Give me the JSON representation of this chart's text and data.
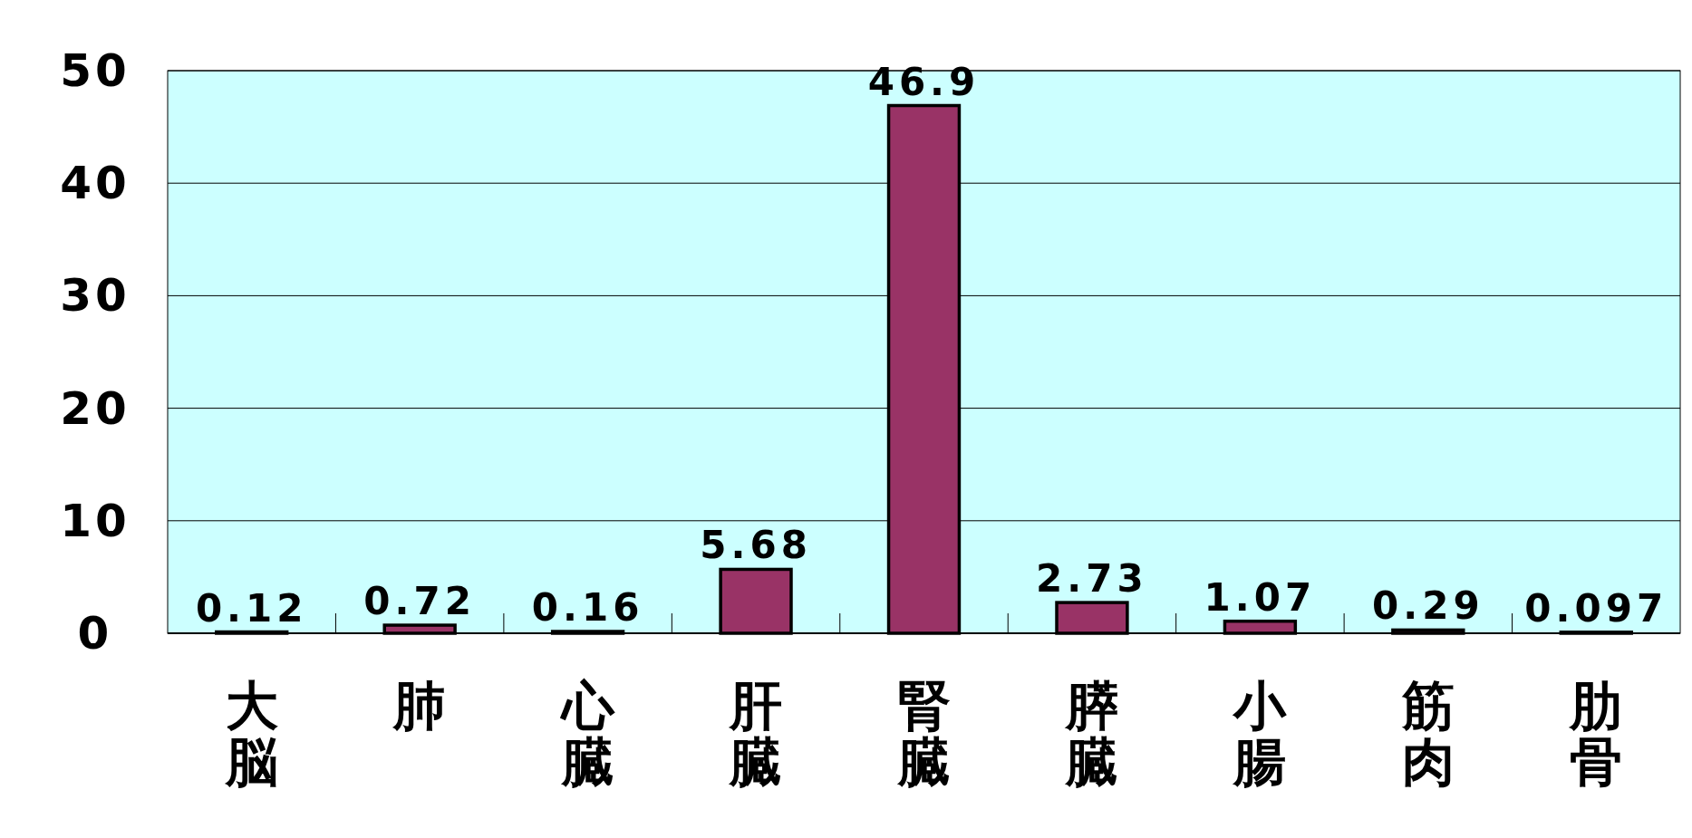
{
  "chart_data": {
    "type": "bar",
    "categories": [
      "大脳",
      "肺",
      "心臓",
      "肝臓",
      "腎臓",
      "膵臓",
      "小腸",
      "筋肉",
      "肋骨"
    ],
    "values": [
      0.12,
      0.72,
      0.16,
      5.68,
      46.9,
      2.73,
      1.07,
      0.29,
      0.097
    ],
    "color": "#993366",
    "ylim": [
      0,
      50
    ],
    "yticks": [
      0,
      10,
      20,
      30,
      40,
      50
    ],
    "grid": "y",
    "data_labels": true
  }
}
